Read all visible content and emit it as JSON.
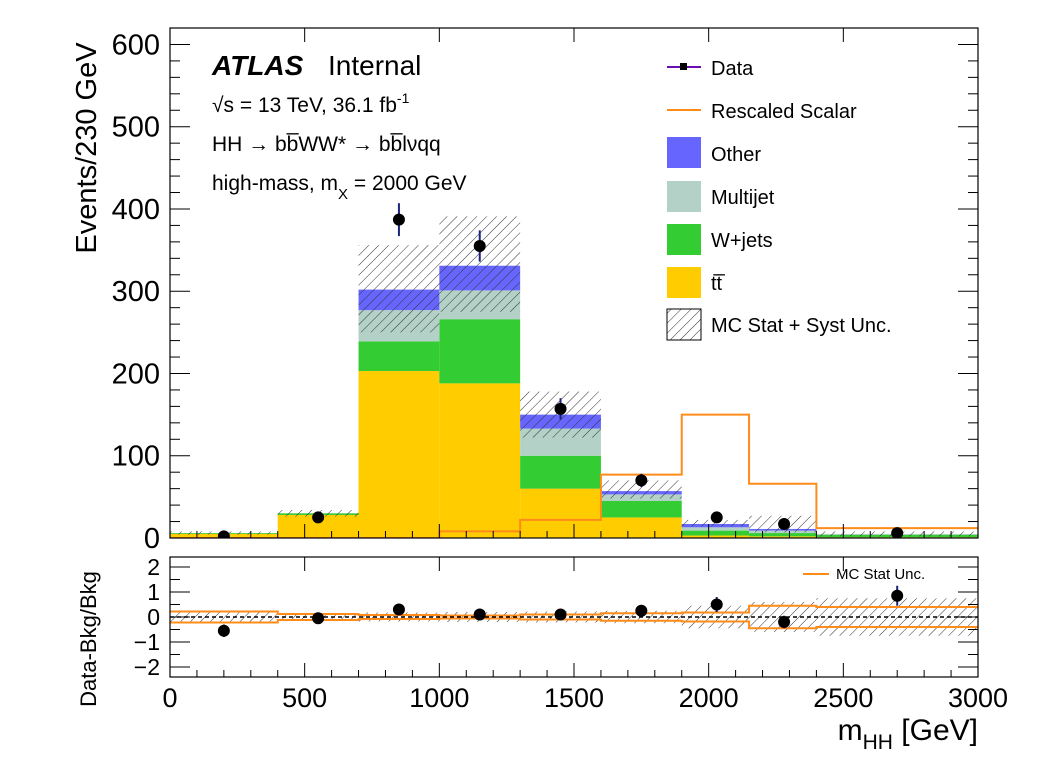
{
  "chart_data": [
    {
      "type": "bar",
      "panel": "main",
      "ylabel": "Events/230 GeV",
      "ylim": [
        0,
        620
      ],
      "yticks": [
        0,
        100,
        200,
        300,
        400,
        500,
        600
      ],
      "bin_edges": [
        0,
        400,
        700,
        1000,
        1300,
        1600,
        1900,
        2150,
        2400,
        3000
      ],
      "stack_order_bottom_to_top": [
        "ttbar",
        "wjets",
        "multijet",
        "other"
      ],
      "series": [
        {
          "key": "ttbar",
          "name": "tt̅",
          "color": "#ffcc00",
          "values": [
            5,
            28,
            203,
            188,
            60,
            25,
            3,
            2,
            1
          ]
        },
        {
          "key": "wjets",
          "name": "W+jets",
          "color": "#33cc33",
          "values": [
            1,
            2,
            36,
            78,
            40,
            20,
            6,
            4,
            3
          ]
        },
        {
          "key": "multijet",
          "name": "Multijet",
          "color": "#b3d1c6",
          "values": [
            0,
            0,
            38,
            35,
            33,
            8,
            4,
            3,
            1
          ]
        },
        {
          "key": "other",
          "name": "Other",
          "color": "#6666ff",
          "values": [
            0,
            0,
            25,
            30,
            17,
            4,
            4,
            2,
            0
          ]
        }
      ],
      "unc_band": {
        "name": "MC Stat + Syst Unc.",
        "low": [
          4,
          26,
          250,
          275,
          122,
          48,
          14,
          7,
          2
        ],
        "high": [
          8,
          34,
          356,
          391,
          178,
          70,
          22,
          27,
          8
        ]
      },
      "signal": {
        "name": "Rescaled Scalar",
        "color": "#ff8c1a",
        "values": [
          0,
          0,
          0,
          8,
          22,
          77,
          150,
          66,
          12
        ]
      },
      "data": {
        "name": "Data",
        "x": [
          200,
          550,
          850,
          1150,
          1450,
          1750,
          2030,
          2280,
          2700
        ],
        "y": [
          2,
          25,
          387,
          355,
          157,
          70,
          25,
          17,
          6
        ],
        "err": [
          1.5,
          5,
          20,
          19,
          13,
          8,
          5,
          4,
          2.5
        ]
      }
    },
    {
      "type": "scatter",
      "panel": "ratio",
      "ylabel": "Data-Bkg/Bkg",
      "xlabel": "m",
      "xlabel_sub": "HH",
      "xlabel_unit": " [GeV]",
      "xlim": [
        0,
        3000
      ],
      "xticks": [
        0,
        500,
        1000,
        1500,
        2000,
        2500,
        3000
      ],
      "ylim": [
        -2.4,
        2.4
      ],
      "yticks": [
        -2,
        -1,
        0,
        1,
        2
      ],
      "ytick_labels": [
        "−2",
        "−1",
        "0",
        "1",
        "2"
      ],
      "points": {
        "x": [
          200,
          550,
          850,
          1150,
          1450,
          1750,
          2030,
          2280,
          2700
        ],
        "y": [
          -0.55,
          -0.05,
          0.3,
          0.1,
          0.1,
          0.25,
          0.5,
          -0.2,
          0.85
        ],
        "err": [
          0.25,
          0.12,
          0.15,
          0.08,
          0.1,
          0.15,
          0.3,
          0.25,
          0.4
        ]
      },
      "stat_unc": {
        "name": "MC Stat Unc.",
        "color": "#ff8c1a",
        "half_width": [
          0.22,
          0.12,
          0.08,
          0.06,
          0.1,
          0.15,
          0.18,
          0.45,
          0.4
        ]
      },
      "total_unc_half_width": [
        0.25,
        0.12,
        0.18,
        0.2,
        0.22,
        0.25,
        0.45,
        0.6,
        0.75
      ]
    }
  ],
  "labels": {
    "atlas": "ATLAS",
    "internal": "Internal",
    "sqrt_s": "√s = 13 TeV, 36.1 fb",
    "lumi_exp": "-1",
    "process": "HH → bb̅WW* → bb̅lνqq",
    "mass_pre": "high-mass, m",
    "mass_sub": "X",
    "mass_post": " = 2000 GeV"
  }
}
